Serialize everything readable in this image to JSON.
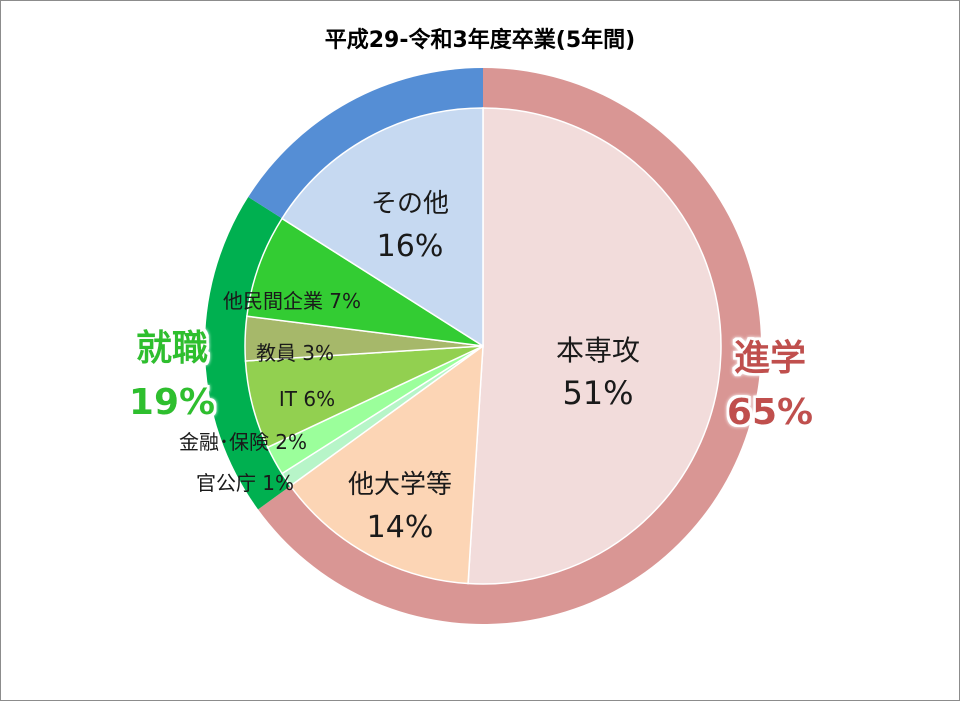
{
  "chart_data": {
    "type": "pie",
    "title": "平成29-令和3年度卒業(5年間)",
    "outer_ring": [
      {
        "name": "進学",
        "value": 65,
        "label": "65%",
        "color": "#d99694",
        "text_color": "#c0504d"
      },
      {
        "name": "就職",
        "value": 19,
        "label": "19%",
        "color": "#00b050",
        "text_color": "#2fbf2f"
      },
      {
        "name": "その他",
        "value": 16,
        "label": "16%",
        "color": "#558ed5"
      }
    ],
    "inner_pie": [
      {
        "name": "本専攻",
        "value": 51,
        "label": "51%",
        "group": "進学",
        "color": "#f2dcdb"
      },
      {
        "name": "他大学等",
        "value": 14,
        "label": "14%",
        "group": "進学",
        "color": "#fcd5b5"
      },
      {
        "name": "官公庁",
        "value": 1,
        "label": "1%",
        "group": "就職",
        "color": "#b7f5c8"
      },
      {
        "name": "金融･保険",
        "value": 2,
        "label": "2%",
        "group": "就職",
        "color": "#9bff9b"
      },
      {
        "name": "IT",
        "value": 6,
        "label": "6%",
        "group": "就職",
        "color": "#92d050"
      },
      {
        "name": "教員",
        "value": 3,
        "label": "3%",
        "group": "就職",
        "color": "#a6b86a"
      },
      {
        "name": "他民間企業",
        "value": 7,
        "label": "7%",
        "group": "就職",
        "color": "#33cc33"
      },
      {
        "name": "その他",
        "value": 16,
        "label": "16%",
        "group": "その他",
        "color": "#c6d9f1"
      }
    ]
  }
}
